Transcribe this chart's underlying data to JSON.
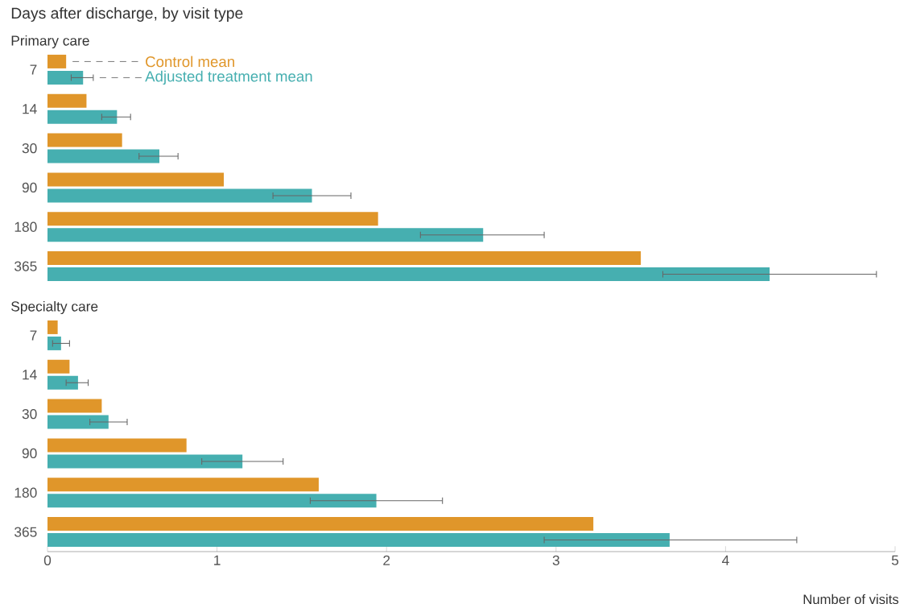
{
  "chart_data": [
    {
      "type": "bar",
      "orientation": "horizontal",
      "title": "Days after discharge, by visit type",
      "subtitle": "Primary care",
      "categories": [
        "7",
        "14",
        "30",
        "90",
        "180",
        "365"
      ],
      "series": [
        {
          "name": "Control mean",
          "color": "#e0962a",
          "values": [
            0.11,
            0.23,
            0.44,
            1.04,
            1.95,
            3.5
          ]
        },
        {
          "name": "Adjusted treatment mean",
          "color": "#46afb0",
          "values": [
            0.21,
            0.41,
            0.66,
            1.56,
            2.57,
            4.26
          ],
          "errors": [
            [
              0.14,
              0.27
            ],
            [
              0.32,
              0.49
            ],
            [
              0.54,
              0.77
            ],
            [
              1.33,
              1.79
            ],
            [
              2.2,
              2.93
            ],
            [
              3.63,
              4.89
            ]
          ]
        }
      ],
      "xlim": [
        0,
        5
      ],
      "xticks": [
        0,
        1,
        2,
        3,
        4,
        5
      ],
      "tick_labels": "y",
      "legend": "top left"
    },
    {
      "type": "bar",
      "orientation": "horizontal",
      "title": "Specialty care",
      "xlabel": "Number of visits",
      "categories": [
        "7",
        "14",
        "30",
        "90",
        "180",
        "365"
      ],
      "series": [
        {
          "color": "#e0962a",
          "values": [
            0.06,
            0.13,
            0.32,
            0.82,
            1.6,
            3.22
          ]
        },
        {
          "color": "#46afb0",
          "values": [
            0.08,
            0.18,
            0.36,
            1.15,
            1.94,
            3.67
          ],
          "errors": [
            [
              0.03,
              0.13
            ],
            [
              0.11,
              0.24
            ],
            [
              0.25,
              0.47
            ],
            [
              0.91,
              1.39
            ],
            [
              1.55,
              2.33
            ],
            [
              2.93,
              4.42
            ]
          ]
        }
      ],
      "xlim": [
        0,
        5
      ],
      "xticks": [
        0,
        1,
        2,
        3,
        4,
        5
      ]
    }
  ]
}
